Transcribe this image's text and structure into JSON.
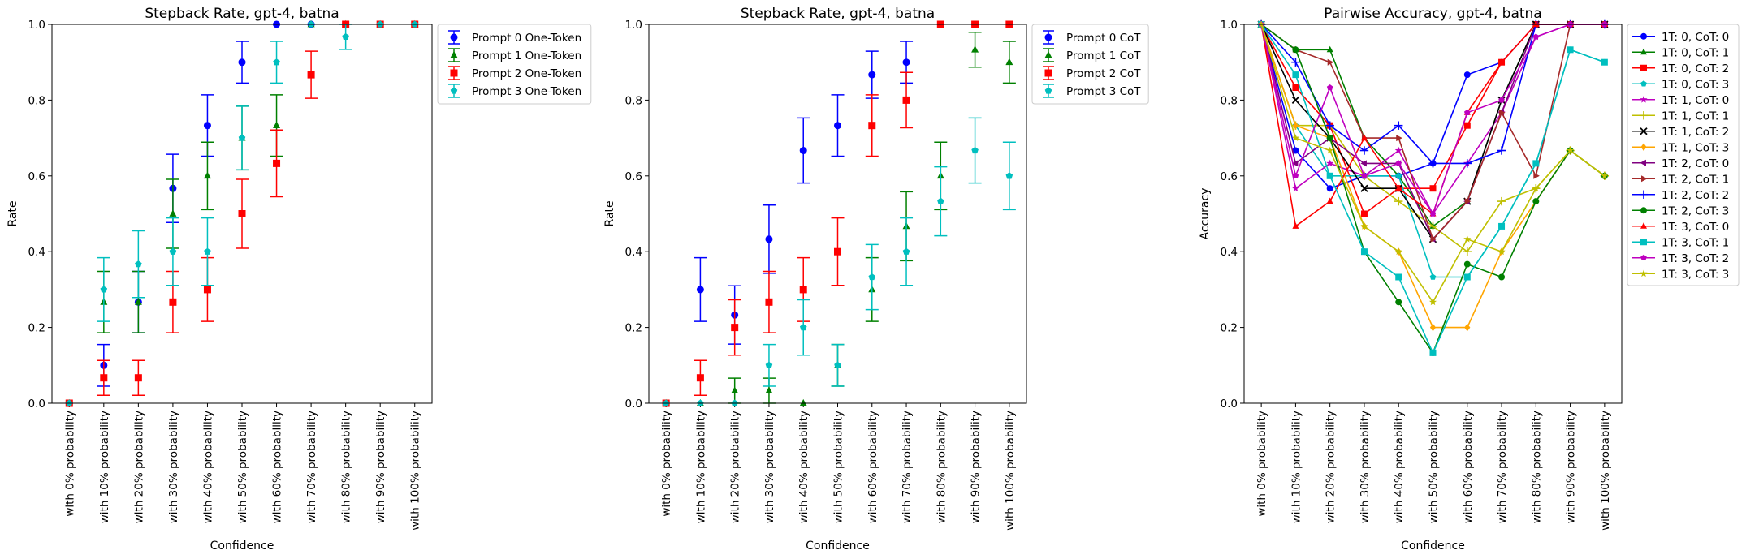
{
  "chart_data": [
    {
      "type": "scatter",
      "title": "Stepback Rate, gpt-4, batna",
      "xlabel": "Confidence",
      "ylabel": "Rate",
      "ylim": [
        0,
        1
      ],
      "yticks": [
        "0.0",
        "0.2",
        "0.4",
        "0.6",
        "0.8",
        "1.0"
      ],
      "categories": [
        "with 0% probability",
        "with 10% probability",
        "with 20% probability",
        "with 30% probability",
        "with 40% probability",
        "with 50% probability",
        "with 60% probability",
        "with 70% probability",
        "with 80% probability",
        "with 90% probability",
        "with 100% probability"
      ],
      "legend_position": "outside-upper-right",
      "series": [
        {
          "name": "Prompt 0 One-Token",
          "color": "#0000ff",
          "marker": "circle",
          "values": [
            0.0,
            0.1,
            0.267,
            0.567,
            0.733,
            0.9,
            1.0,
            1.0,
            1.0,
            1.0,
            1.0
          ],
          "errors": [
            0.0,
            0.055,
            0.081,
            0.09,
            0.081,
            0.055,
            0.0,
            0.0,
            0.0,
            0.0,
            0.0
          ]
        },
        {
          "name": "Prompt 1 One-Token",
          "color": "#008000",
          "marker": "triangle",
          "values": [
            0.0,
            0.267,
            0.267,
            0.5,
            0.6,
            0.7,
            0.733,
            1.0,
            1.0,
            1.0,
            1.0
          ],
          "errors": [
            0.0,
            0.081,
            0.081,
            0.091,
            0.089,
            0.084,
            0.081,
            0.0,
            0.0,
            0.0,
            0.0
          ]
        },
        {
          "name": "Prompt 2 One-Token",
          "color": "#ff0000",
          "marker": "square",
          "values": [
            0.0,
            0.067,
            0.067,
            0.267,
            0.3,
            0.5,
            0.633,
            0.867,
            1.0,
            1.0,
            1.0
          ],
          "errors": [
            0.0,
            0.046,
            0.046,
            0.081,
            0.084,
            0.091,
            0.088,
            0.062,
            0.0,
            0.0,
            0.0
          ]
        },
        {
          "name": "Prompt 3 One-Token",
          "color": "#00bfbf",
          "marker": "pentagon",
          "values": [
            0.0,
            0.3,
            0.367,
            0.4,
            0.4,
            0.7,
            0.9,
            1.0,
            0.967,
            1.0,
            1.0
          ],
          "errors": [
            0.0,
            0.084,
            0.088,
            0.089,
            0.089,
            0.084,
            0.055,
            0.0,
            0.033,
            0.0,
            0.0
          ]
        }
      ]
    },
    {
      "type": "scatter",
      "title": "Stepback Rate, gpt-4, batna",
      "xlabel": "Confidence",
      "ylabel": "Rate",
      "ylim": [
        0,
        1
      ],
      "yticks": [
        "0.0",
        "0.2",
        "0.4",
        "0.6",
        "0.8",
        "1.0"
      ],
      "categories": [
        "with 0% probability",
        "with 10% probability",
        "with 20% probability",
        "with 30% probability",
        "with 40% probability",
        "with 50% probability",
        "with 60% probability",
        "with 70% probability",
        "with 80% probability",
        "with 90% probability",
        "with 100% probability"
      ],
      "legend_position": "outside-upper-right",
      "series": [
        {
          "name": "Prompt 0 CoT",
          "color": "#0000ff",
          "marker": "circle",
          "values": [
            0.0,
            0.3,
            0.233,
            0.433,
            0.667,
            0.733,
            0.867,
            0.9,
            1.0,
            1.0,
            1.0
          ],
          "errors": [
            0.0,
            0.084,
            0.077,
            0.09,
            0.086,
            0.081,
            0.062,
            0.055,
            0.0,
            0.0,
            0.0
          ]
        },
        {
          "name": "Prompt 1 CoT",
          "color": "#008000",
          "marker": "triangle",
          "values": [
            0.0,
            0.0,
            0.033,
            0.033,
            0.0,
            0.1,
            0.3,
            0.467,
            0.6,
            0.933,
            0.9
          ],
          "errors": [
            0.0,
            0.0,
            0.033,
            0.033,
            0.0,
            0.055,
            0.084,
            0.091,
            0.089,
            0.046,
            0.055
          ]
        },
        {
          "name": "Prompt 2 CoT",
          "color": "#ff0000",
          "marker": "square",
          "values": [
            0.0,
            0.067,
            0.2,
            0.267,
            0.3,
            0.4,
            0.733,
            0.8,
            1.0,
            1.0,
            1.0
          ],
          "errors": [
            0.0,
            0.046,
            0.073,
            0.081,
            0.084,
            0.089,
            0.081,
            0.073,
            0.0,
            0.0,
            0.0
          ]
        },
        {
          "name": "Prompt 3 CoT",
          "color": "#00bfbf",
          "marker": "pentagon",
          "values": [
            0.0,
            0.0,
            0.0,
            0.1,
            0.2,
            0.1,
            0.333,
            0.4,
            0.533,
            0.667,
            0.6
          ],
          "errors": [
            0.0,
            0.0,
            0.0,
            0.055,
            0.073,
            0.055,
            0.086,
            0.089,
            0.091,
            0.086,
            0.089
          ]
        }
      ]
    },
    {
      "type": "line",
      "title": "Pairwise Accuracy, gpt-4, batna",
      "xlabel": "Confidence",
      "ylabel": "Accuracy",
      "ylim": [
        0,
        1
      ],
      "yticks": [
        "0.0",
        "0.2",
        "0.4",
        "0.6",
        "0.8",
        "1.0"
      ],
      "categories": [
        "with 0% probability",
        "with 10% probability",
        "with 20% probability",
        "with 30% probability",
        "with 40% probability",
        "with 50% probability",
        "with 60% probability",
        "with 70% probability",
        "with 80% probability",
        "with 90% probability",
        "with 100% probability"
      ],
      "legend_position": "outside-upper-right",
      "series": [
        {
          "name": "1T: 0, CoT: 0",
          "color": "#0000ff",
          "marker": "circle",
          "values": [
            1.0,
            0.667,
            0.567,
            0.6,
            0.6,
            0.633,
            0.867,
            0.9,
            1.0,
            1.0,
            1.0
          ]
        },
        {
          "name": "1T: 0, CoT: 1",
          "color": "#008000",
          "marker": "triangle",
          "values": [
            1.0,
            0.933,
            0.933,
            0.7,
            0.6,
            0.467,
            0.533,
            0.8,
            1.0,
            1.0,
            1.0
          ]
        },
        {
          "name": "1T: 0, CoT: 2",
          "color": "#ff0000",
          "marker": "square",
          "values": [
            1.0,
            0.833,
            0.733,
            0.5,
            0.567,
            0.567,
            0.733,
            0.9,
            1.0,
            1.0,
            1.0
          ]
        },
        {
          "name": "1T: 0, CoT: 3",
          "color": "#00bfbf",
          "marker": "pentagon",
          "values": [
            1.0,
            0.733,
            0.6,
            0.6,
            0.6,
            0.333,
            0.333,
            0.467,
            0.633,
            0.933,
            0.9
          ]
        },
        {
          "name": "1T: 1, CoT: 0",
          "color": "#bf00bf",
          "marker": "star",
          "values": [
            1.0,
            0.567,
            0.633,
            0.6,
            0.667,
            0.5,
            0.633,
            0.767,
            0.967,
            1.0,
            1.0
          ]
        },
        {
          "name": "1T: 1, CoT: 1",
          "color": "#bfbf00",
          "marker": "plus",
          "values": [
            1.0,
            0.733,
            0.733,
            0.6,
            0.533,
            0.467,
            0.4,
            0.533,
            0.567,
            0.667,
            0.6
          ]
        },
        {
          "name": "1T: 1, CoT: 2",
          "color": "#000000",
          "marker": "x",
          "values": [
            1.0,
            0.8,
            0.7,
            0.567,
            0.567,
            0.433,
            0.533,
            0.8,
            1.0,
            1.0,
            1.0
          ]
        },
        {
          "name": "1T: 1, CoT: 3",
          "color": "#ffa500",
          "marker": "diamond",
          "values": [
            1.0,
            0.733,
            0.7,
            0.467,
            0.4,
            0.2,
            0.2,
            0.4,
            0.533,
            0.667,
            0.6
          ]
        },
        {
          "name": "1T: 2, CoT: 0",
          "color": "#800080",
          "marker": "triangle-left",
          "values": [
            1.0,
            0.633,
            0.7,
            0.633,
            0.633,
            0.433,
            0.533,
            0.767,
            1.0,
            1.0,
            1.0
          ]
        },
        {
          "name": "1T: 2, CoT: 1",
          "color": "#a52a2a",
          "marker": "triangle-right",
          "values": [
            1.0,
            0.933,
            0.9,
            0.7,
            0.7,
            0.433,
            0.533,
            0.767,
            0.6,
            1.0,
            1.0
          ]
        },
        {
          "name": "1T: 2, CoT: 2",
          "color": "#0000ff",
          "marker": "plus",
          "values": [
            1.0,
            0.9,
            0.733,
            0.667,
            0.733,
            0.633,
            0.633,
            0.667,
            1.0,
            1.0,
            1.0
          ]
        },
        {
          "name": "1T: 2, CoT: 3",
          "color": "#008000",
          "marker": "circle",
          "values": [
            1.0,
            0.933,
            0.7,
            0.4,
            0.267,
            0.133,
            0.367,
            0.333,
            0.533,
            0.667,
            0.6
          ]
        },
        {
          "name": "1T: 3, CoT: 0",
          "color": "#ff0000",
          "marker": "triangle",
          "values": [
            1.0,
            0.467,
            0.533,
            0.7,
            0.567,
            0.5,
            0.767,
            0.9,
            1.0,
            1.0,
            1.0
          ]
        },
        {
          "name": "1T: 3, CoT: 1",
          "color": "#00bfbf",
          "marker": "square",
          "values": [
            1.0,
            0.867,
            0.6,
            0.4,
            0.333,
            0.133,
            0.333,
            0.467,
            0.633,
            0.933,
            0.9
          ]
        },
        {
          "name": "1T: 3, CoT: 2",
          "color": "#bf00bf",
          "marker": "pentagon",
          "values": [
            1.0,
            0.6,
            0.833,
            0.6,
            0.633,
            0.5,
            0.767,
            0.8,
            0.967,
            1.0,
            1.0
          ]
        },
        {
          "name": "1T: 3, CoT: 3",
          "color": "#bfbf00",
          "marker": "star",
          "values": [
            1.0,
            0.7,
            0.667,
            0.467,
            0.4,
            0.267,
            0.433,
            0.4,
            0.567,
            0.667,
            0.6
          ]
        }
      ]
    }
  ]
}
